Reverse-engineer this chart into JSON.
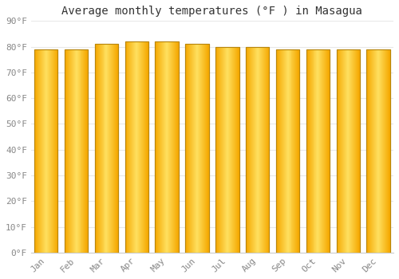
{
  "title": "Average monthly temperatures (°F ) in Masagua",
  "months": [
    "Jan",
    "Feb",
    "Mar",
    "Apr",
    "May",
    "Jun",
    "Jul",
    "Aug",
    "Sep",
    "Oct",
    "Nov",
    "Dec"
  ],
  "values": [
    79,
    79,
    81,
    82,
    82,
    81,
    80,
    80,
    79,
    79,
    79,
    79
  ],
  "bar_color_center": "#FFCC44",
  "bar_color_edge": "#F5A800",
  "bar_edge_color": "#B8860B",
  "background_color": "#FFFFFF",
  "plot_bg_color": "#FFFFFF",
  "grid_color": "#E8E8E8",
  "ylim": [
    0,
    90
  ],
  "yticks": [
    0,
    10,
    20,
    30,
    40,
    50,
    60,
    70,
    80,
    90
  ],
  "ytick_labels": [
    "0°F",
    "10°F",
    "20°F",
    "30°F",
    "40°F",
    "50°F",
    "60°F",
    "70°F",
    "80°F",
    "90°F"
  ],
  "title_fontsize": 10,
  "tick_fontsize": 8,
  "tick_color": "#888888",
  "font_family": "monospace",
  "bar_width": 0.78
}
